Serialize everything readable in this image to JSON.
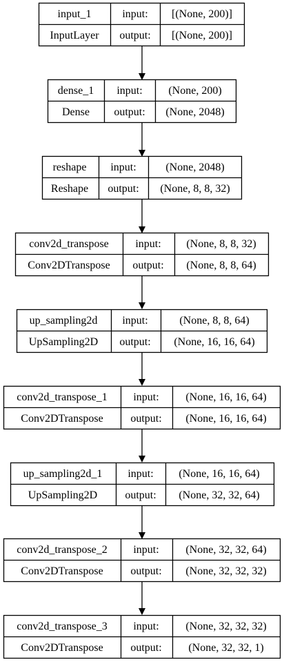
{
  "nodes": [
    {
      "name": "input_1",
      "type": "InputLayer",
      "input_label": "input:",
      "output_label": "output:",
      "input": "[(None, 200)]",
      "output": "[(None, 200)]"
    },
    {
      "name": "dense_1",
      "type": "Dense",
      "input_label": "input:",
      "output_label": "output:",
      "input": "(None, 200)",
      "output": "(None, 2048)"
    },
    {
      "name": "reshape",
      "type": "Reshape",
      "input_label": "input:",
      "output_label": "output:",
      "input": "(None, 2048)",
      "output": "(None, 8, 8, 32)"
    },
    {
      "name": "conv2d_transpose",
      "type": "Conv2DTranspose",
      "input_label": "input:",
      "output_label": "output:",
      "input": "(None, 8, 8, 32)",
      "output": "(None, 8, 8, 64)"
    },
    {
      "name": "up_sampling2d",
      "type": "UpSampling2D",
      "input_label": "input:",
      "output_label": "output:",
      "input": "(None, 8, 8, 64)",
      "output": "(None, 16, 16, 64)"
    },
    {
      "name": "conv2d_transpose_1",
      "type": "Conv2DTranspose",
      "input_label": "input:",
      "output_label": "output:",
      "input": "(None, 16, 16, 64)",
      "output": "(None, 16, 16, 64)"
    },
    {
      "name": "up_sampling2d_1",
      "type": "UpSampling2D",
      "input_label": "input:",
      "output_label": "output:",
      "input": "(None, 16, 16, 64)",
      "output": "(None, 32, 32, 64)"
    },
    {
      "name": "conv2d_transpose_2",
      "type": "Conv2DTranspose",
      "input_label": "input:",
      "output_label": "output:",
      "input": "(None, 32, 32, 64)",
      "output": "(None, 32, 32, 32)"
    },
    {
      "name": "conv2d_transpose_3",
      "type": "Conv2DTranspose",
      "input_label": "input:",
      "output_label": "output:",
      "input": "(None, 32, 32, 32)",
      "output": "(None, 32, 32, 1)"
    }
  ]
}
